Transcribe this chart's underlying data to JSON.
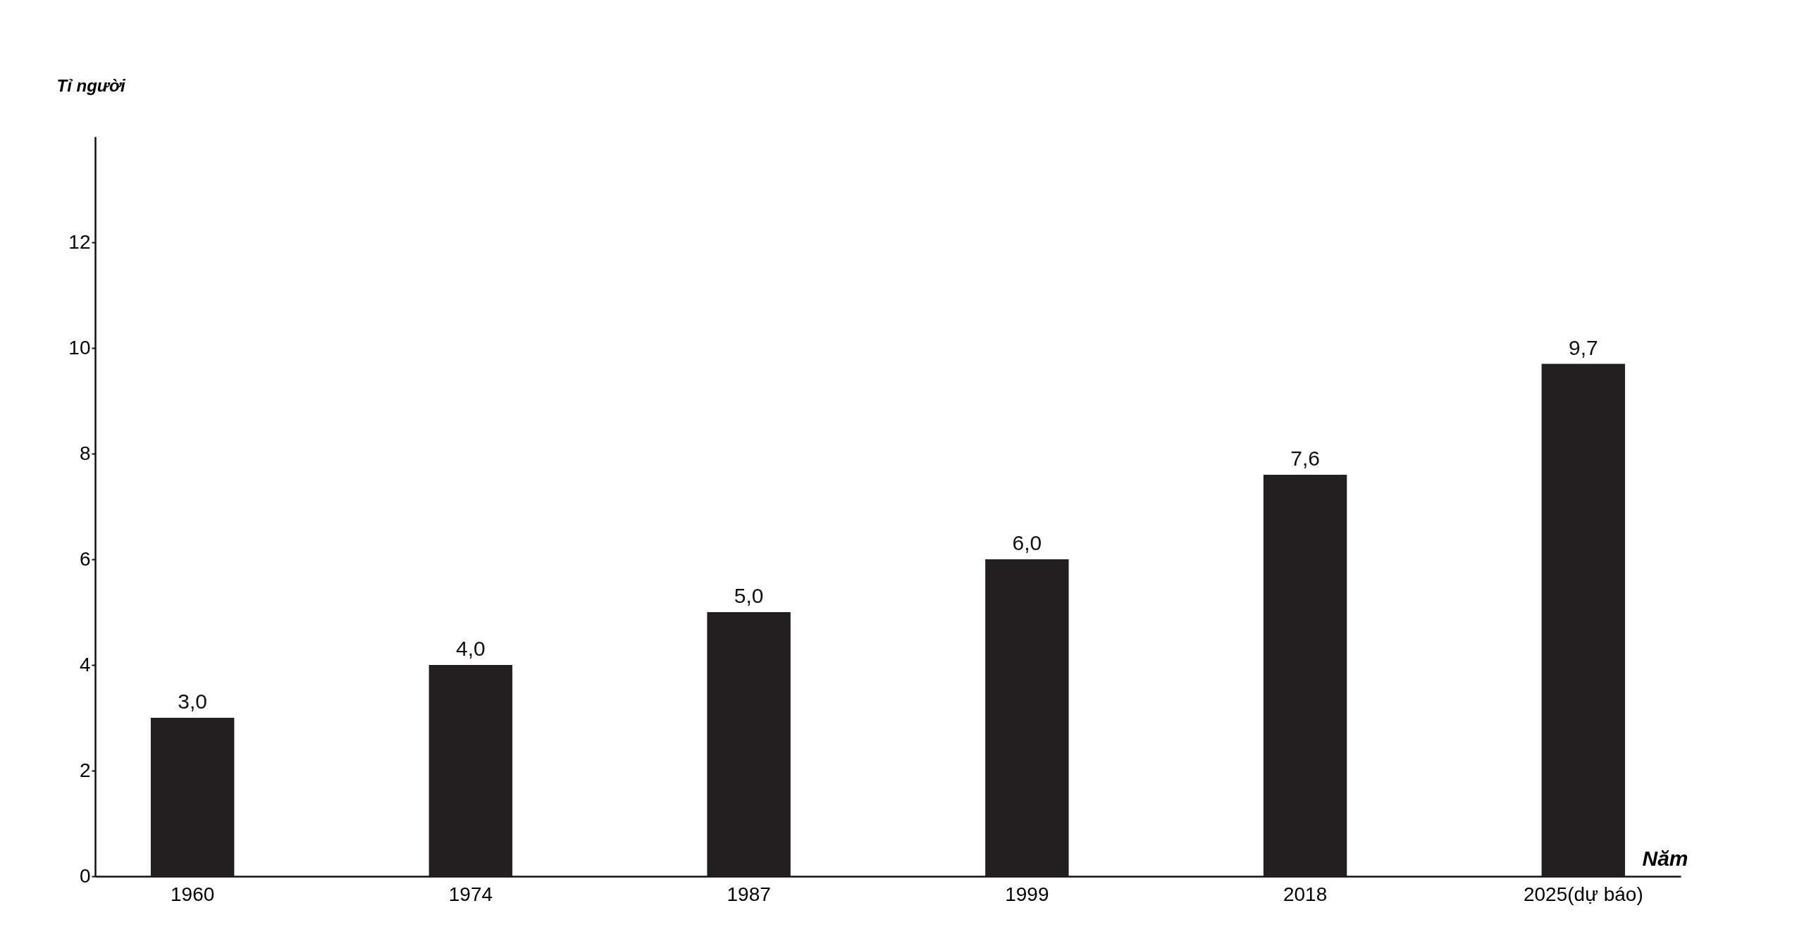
{
  "chart_data": {
    "type": "bar",
    "categories": [
      "1960",
      "1974",
      "1987",
      "1999",
      "2018",
      "2025(dự báo)"
    ],
    "values": [
      3.0,
      4.0,
      5.0,
      6.0,
      7.6,
      9.7
    ],
    "value_labels": [
      "3,0",
      "4,0",
      "5,0",
      "6,0",
      "7,6",
      "9,7"
    ],
    "color": "#231f20",
    "xlabel": "Năm",
    "ylabel": "Tỉ người",
    "ylim": [
      0,
      14
    ],
    "yticks": [
      0,
      2,
      4,
      6,
      8,
      10,
      12
    ],
    "grid": false
  }
}
